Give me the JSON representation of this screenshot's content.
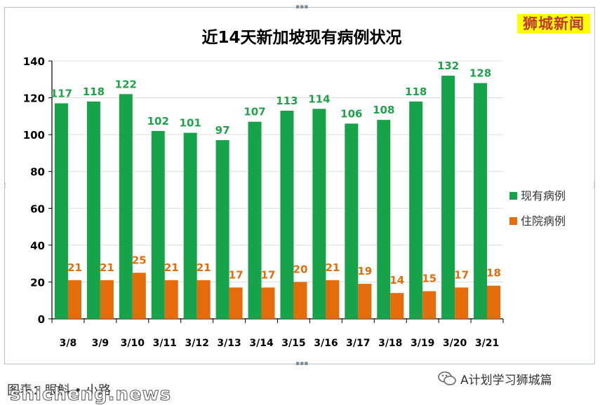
{
  "brand_label": "狮城新闻",
  "footer": {
    "caption": "图表：眼斛 • 小路",
    "watermark": "shicheng.news",
    "wechat_account": "A计划学习狮城篇",
    "wechat_icon": "wechat-icon"
  },
  "colors": {
    "current_cases": "#17a34a",
    "current_labels": "#1fa34a",
    "hospitalized": "#e46c0a",
    "hospitalized_labels": "#e46c0a",
    "title": "#000000"
  },
  "chart_data": {
    "type": "bar",
    "title": "近14天新加坡现有病例状况",
    "xlabel": "",
    "ylabel": "",
    "ylim": [
      0,
      140
    ],
    "yticks": [
      0,
      20,
      40,
      60,
      80,
      100,
      120,
      140
    ],
    "grid": true,
    "legend_position": "right",
    "categories": [
      "3/8",
      "3/9",
      "3/10",
      "3/11",
      "3/12",
      "3/13",
      "3/14",
      "3/15",
      "3/16",
      "3/17",
      "3/18",
      "3/19",
      "3/20",
      "3/21"
    ],
    "series": [
      {
        "name": "现有病例",
        "values": [
          117,
          118,
          122,
          102,
          101,
          97,
          107,
          113,
          114,
          106,
          108,
          118,
          132,
          128
        ]
      },
      {
        "name": "住院病例",
        "values": [
          21,
          21,
          25,
          21,
          21,
          17,
          17,
          20,
          21,
          19,
          14,
          15,
          17,
          18
        ]
      }
    ]
  }
}
